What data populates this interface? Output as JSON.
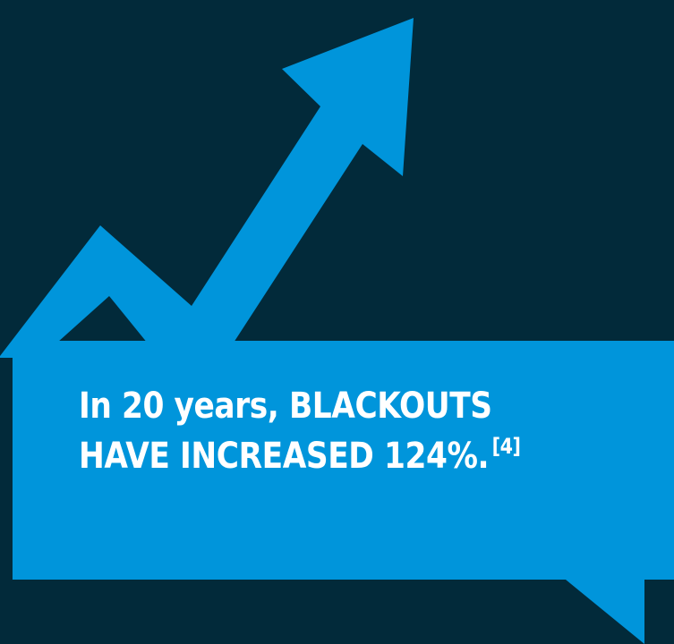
{
  "headline": {
    "line1": "In 20 years, BLACKOUTS",
    "line2": "HAVE INCREASED 124%.",
    "citation": "[4]"
  },
  "colors": {
    "background": "#022a3a",
    "accent": "#0095db",
    "text": "#ffffff"
  },
  "icons": {
    "trend": "trend-up-arrow-icon",
    "callout": "speech-bubble-callout"
  }
}
